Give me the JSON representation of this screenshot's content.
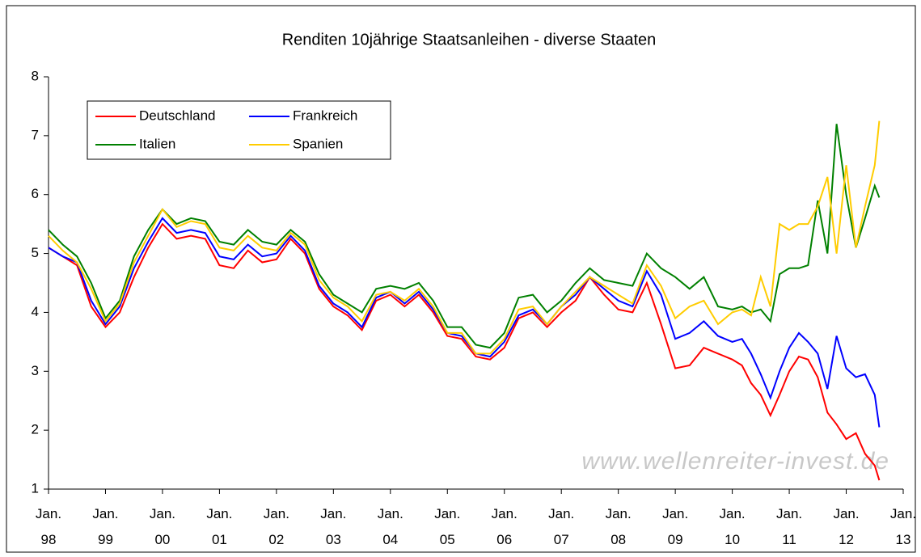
{
  "chart_data": {
    "type": "line",
    "title": "Renditen 10jährige Staatsanleihen - diverse Staaten",
    "annotation": "www.wellenreiter-invest.de",
    "x": [
      1998,
      1998.25,
      1998.5,
      1998.75,
      1999,
      1999.25,
      1999.5,
      1999.75,
      2000,
      2000.25,
      2000.5,
      2000.75,
      2001,
      2001.25,
      2001.5,
      2001.75,
      2002,
      2002.25,
      2002.5,
      2002.75,
      2003,
      2003.25,
      2003.5,
      2003.75,
      2004,
      2004.25,
      2004.5,
      2004.75,
      2005,
      2005.25,
      2005.5,
      2005.75,
      2006,
      2006.25,
      2006.5,
      2006.75,
      2007,
      2007.25,
      2007.5,
      2007.75,
      2008,
      2008.25,
      2008.5,
      2008.75,
      2009,
      2009.25,
      2009.5,
      2009.75,
      2010,
      2010.17,
      2010.33,
      2010.5,
      2010.67,
      2010.83,
      2011,
      2011.17,
      2011.33,
      2011.5,
      2011.67,
      2011.83,
      2012,
      2012.17,
      2012.33,
      2012.5,
      2012.58
    ],
    "series": [
      {
        "name": "Deutschland",
        "color": "#ff0000",
        "values": [
          5.1,
          4.95,
          4.8,
          4.1,
          3.75,
          4.0,
          4.6,
          5.1,
          5.5,
          5.25,
          5.3,
          5.25,
          4.8,
          4.75,
          5.05,
          4.85,
          4.9,
          5.25,
          5.0,
          4.4,
          4.1,
          3.95,
          3.7,
          4.2,
          4.3,
          4.1,
          4.3,
          4.0,
          3.6,
          3.55,
          3.25,
          3.2,
          3.4,
          3.9,
          4.0,
          3.75,
          4.0,
          4.2,
          4.6,
          4.3,
          4.05,
          4.0,
          4.5,
          3.8,
          3.05,
          3.1,
          3.4,
          3.3,
          3.2,
          3.1,
          2.8,
          2.6,
          2.25,
          2.6,
          3.0,
          3.25,
          3.2,
          2.9,
          2.3,
          2.1,
          1.85,
          1.95,
          1.6,
          1.4,
          1.15
        ]
      },
      {
        "name": "Frankreich",
        "color": "#0000ff",
        "values": [
          5.1,
          4.95,
          4.85,
          4.2,
          3.8,
          4.1,
          4.75,
          5.2,
          5.6,
          5.35,
          5.4,
          5.35,
          4.95,
          4.9,
          5.15,
          4.95,
          5.0,
          5.3,
          5.05,
          4.45,
          4.15,
          4.0,
          3.75,
          4.25,
          4.35,
          4.15,
          4.35,
          4.05,
          3.65,
          3.6,
          3.3,
          3.25,
          3.5,
          3.95,
          4.05,
          3.8,
          4.1,
          4.3,
          4.6,
          4.4,
          4.2,
          4.1,
          4.7,
          4.3,
          3.55,
          3.65,
          3.85,
          3.6,
          3.5,
          3.55,
          3.3,
          2.95,
          2.55,
          3.0,
          3.4,
          3.65,
          3.5,
          3.3,
          2.7,
          3.6,
          3.05,
          2.9,
          2.95,
          2.6,
          2.05
        ]
      },
      {
        "name": "Italien",
        "color": "#008000",
        "values": [
          5.4,
          5.15,
          4.95,
          4.5,
          3.9,
          4.2,
          4.95,
          5.4,
          5.75,
          5.5,
          5.6,
          5.55,
          5.2,
          5.15,
          5.4,
          5.2,
          5.15,
          5.4,
          5.2,
          4.65,
          4.3,
          4.15,
          4.0,
          4.4,
          4.45,
          4.4,
          4.5,
          4.2,
          3.75,
          3.75,
          3.45,
          3.4,
          3.65,
          4.25,
          4.3,
          4.0,
          4.2,
          4.5,
          4.75,
          4.55,
          4.5,
          4.45,
          5.0,
          4.75,
          4.6,
          4.4,
          4.6,
          4.1,
          4.05,
          4.1,
          4.0,
          4.05,
          3.85,
          4.65,
          4.75,
          4.75,
          4.8,
          5.9,
          5.0,
          7.2,
          6.0,
          5.1,
          5.6,
          6.15,
          5.95
        ]
      },
      {
        "name": "Spanien",
        "color": "#ffcc00",
        "values": [
          5.3,
          5.05,
          4.85,
          4.4,
          3.85,
          4.15,
          4.85,
          5.3,
          5.75,
          5.45,
          5.55,
          5.5,
          5.1,
          5.05,
          5.3,
          5.1,
          5.05,
          5.35,
          5.15,
          4.55,
          4.25,
          4.1,
          3.85,
          4.3,
          4.35,
          4.2,
          4.4,
          4.1,
          3.65,
          3.65,
          3.3,
          3.3,
          3.55,
          4.05,
          4.1,
          3.8,
          4.1,
          4.35,
          4.6,
          4.45,
          4.3,
          4.15,
          4.8,
          4.45,
          3.9,
          4.1,
          4.2,
          3.8,
          4.0,
          4.05,
          3.95,
          4.6,
          4.1,
          5.5,
          5.4,
          5.5,
          5.5,
          5.8,
          6.3,
          5.0,
          6.5,
          5.1,
          5.8,
          6.5,
          7.25
        ]
      }
    ],
    "xlim": [
      1998,
      2013
    ],
    "xticks": [
      {
        "value": 1998,
        "label": "Jan. 98"
      },
      {
        "value": 1999,
        "label": "Jan. 99"
      },
      {
        "value": 2000,
        "label": "Jan. 00"
      },
      {
        "value": 2001,
        "label": "Jan. 01"
      },
      {
        "value": 2002,
        "label": "Jan. 02"
      },
      {
        "value": 2003,
        "label": "Jan. 03"
      },
      {
        "value": 2004,
        "label": "Jan. 04"
      },
      {
        "value": 2005,
        "label": "Jan. 05"
      },
      {
        "value": 2006,
        "label": "Jan. 06"
      },
      {
        "value": 2007,
        "label": "Jan. 07"
      },
      {
        "value": 2008,
        "label": "Jan. 08"
      },
      {
        "value": 2009,
        "label": "Jan. 09"
      },
      {
        "value": 2010,
        "label": "Jan. 10"
      },
      {
        "value": 2011,
        "label": "Jan. 11"
      },
      {
        "value": 2012,
        "label": "Jan. 12"
      },
      {
        "value": 2013,
        "label": "Jan. 13"
      }
    ],
    "ylim": [
      1,
      8
    ],
    "yticks": [
      1,
      2,
      3,
      4,
      5,
      6,
      7,
      8
    ],
    "grid": false,
    "legend": "upper left"
  }
}
